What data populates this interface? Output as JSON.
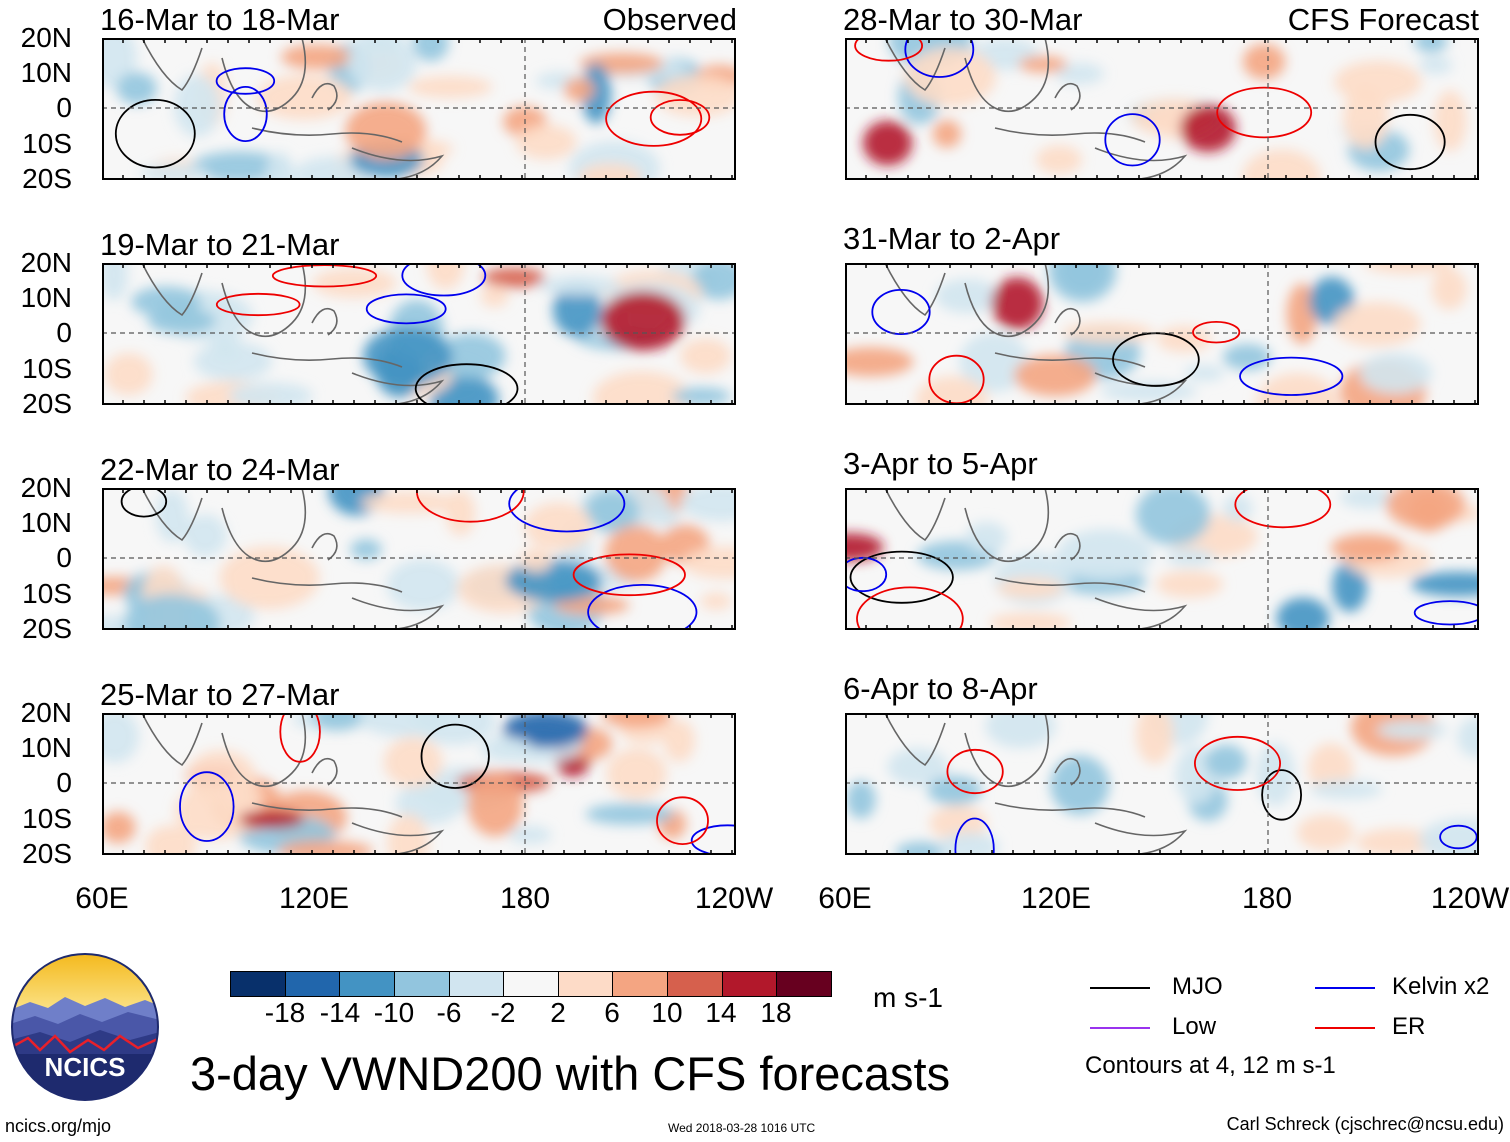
{
  "observed_panels": [
    {
      "title": "16-Mar to 18-Mar",
      "tag": "Observed"
    },
    {
      "title": "19-Mar to 21-Mar",
      "tag": ""
    },
    {
      "title": "22-Mar to 24-Mar",
      "tag": ""
    },
    {
      "title": "25-Mar to 27-Mar",
      "tag": ""
    }
  ],
  "forecast_panels": [
    {
      "title": "28-Mar to 30-Mar",
      "tag": "CFS Forecast"
    },
    {
      "title": "31-Mar to 2-Apr",
      "tag": ""
    },
    {
      "title": "3-Apr to 5-Apr",
      "tag": ""
    },
    {
      "title": "6-Apr to 8-Apr",
      "tag": ""
    }
  ],
  "lat_labels": [
    "20N",
    "10N",
    "0",
    "10S",
    "20S"
  ],
  "lon_labels": [
    "60E",
    "120E",
    "180",
    "120W"
  ],
  "colorbar": {
    "labels": [
      "-18",
      "-14",
      "-10",
      "-6",
      "-2",
      "2",
      "6",
      "10",
      "14",
      "18"
    ],
    "units": "m s-1",
    "colors": [
      "#08306b",
      "#2166ac",
      "#4393c3",
      "#92c5de",
      "#d1e5f0",
      "#f7f7f7",
      "#fddbc7",
      "#f4a582",
      "#d6604d",
      "#b2182b",
      "#67001f"
    ]
  },
  "legend": {
    "items": [
      {
        "label": "MJO",
        "color": "#000000"
      },
      {
        "label": "Kelvin x2",
        "color": "#0000ee"
      },
      {
        "label": "Low",
        "color": "#9933ee"
      },
      {
        "label": "ER",
        "color": "#ee0000"
      }
    ],
    "note": "Contours at 4, 12 m s-1"
  },
  "logo_text": "NCICS",
  "main_title": "3-day VWND200 with CFS forecasts",
  "footer": {
    "left": "ncics.org/mjo",
    "center": "Wed 2018-03-28 1016 UTC",
    "right": "Carl Schreck (cjschrec@ncsu.edu)"
  }
}
